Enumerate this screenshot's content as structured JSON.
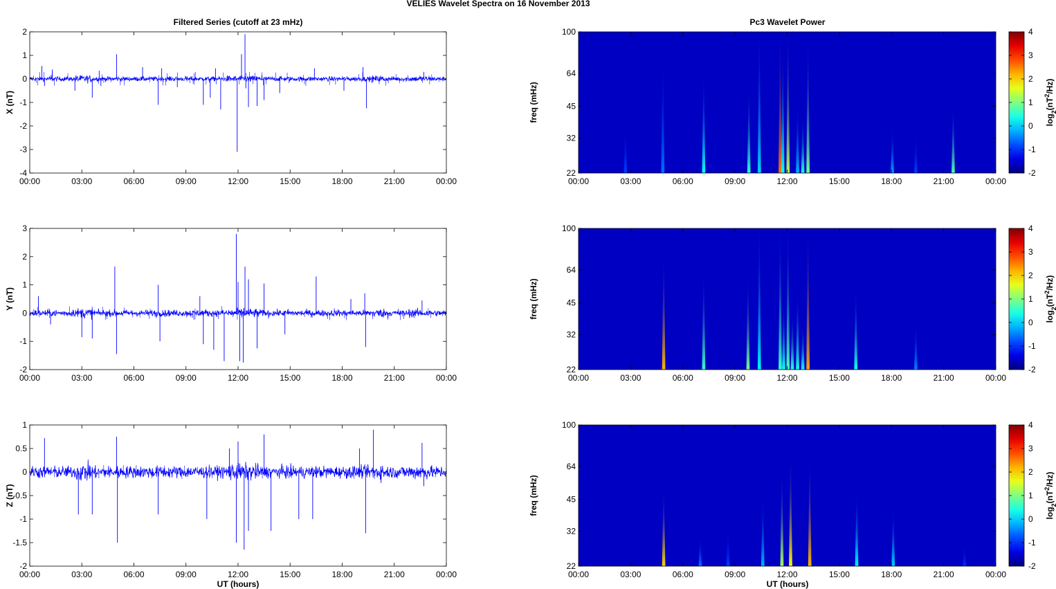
{
  "figure": {
    "suptitle": "VELIES Wavelet Spectra on 16 November  2013",
    "left_title": "Filtered Series (cutoff at 23 mHz)",
    "right_title": "Pc3 Wavelet Power",
    "xlabel": "UT (hours)"
  },
  "chart_data": [
    {
      "type": "line",
      "title": "Filtered Series (cutoff at 23 mHz)",
      "component": "X",
      "ylabel": "X (nT)",
      "xlabel": "",
      "x_ticks": [
        "00:00",
        "03:00",
        "06:00",
        "09:00",
        "12:00",
        "15:00",
        "18:00",
        "21:00",
        "00:00"
      ],
      "xlim_hours": [
        0,
        24
      ],
      "ylim": [
        -4,
        2
      ],
      "y_ticks": [
        2,
        1,
        0,
        -1,
        -2,
        -3,
        -4
      ],
      "y_tick_labels": [
        "2",
        "1",
        "0",
        "-1",
        "-2",
        "-3",
        "-4"
      ],
      "line_color": "#0000ff",
      "noise_amplitude": 0.07,
      "spikes": [
        {
          "t": 0.7,
          "v": 0.55
        },
        {
          "t": 0.85,
          "v": -0.3
        },
        {
          "t": 1.3,
          "v": 0.4
        },
        {
          "t": 2.6,
          "v": -0.5
        },
        {
          "t": 3.6,
          "v": -0.8
        },
        {
          "t": 4.0,
          "v": 0.35
        },
        {
          "t": 4.1,
          "v": -0.3
        },
        {
          "t": 5.0,
          "v": 1.05
        },
        {
          "t": 6.5,
          "v": 0.5
        },
        {
          "t": 7.4,
          "v": -1.1
        },
        {
          "t": 7.6,
          "v": 0.45
        },
        {
          "t": 8.5,
          "v": -0.35
        },
        {
          "t": 10.0,
          "v": -1.1
        },
        {
          "t": 10.4,
          "v": -0.8
        },
        {
          "t": 10.7,
          "v": 0.45
        },
        {
          "t": 11.0,
          "v": -1.3
        },
        {
          "t": 11.95,
          "v": -3.1
        },
        {
          "t": 12.2,
          "v": 1.05
        },
        {
          "t": 12.4,
          "v": 1.9
        },
        {
          "t": 12.45,
          "v": -0.4
        },
        {
          "t": 12.6,
          "v": -1.2
        },
        {
          "t": 13.1,
          "v": -1.15
        },
        {
          "t": 13.5,
          "v": -0.9
        },
        {
          "t": 14.4,
          "v": -0.6
        },
        {
          "t": 16.4,
          "v": 0.45
        },
        {
          "t": 18.1,
          "v": -0.5
        },
        {
          "t": 19.2,
          "v": 0.5
        },
        {
          "t": 19.4,
          "v": -1.25
        },
        {
          "t": 22.7,
          "v": 0.3
        }
      ]
    },
    {
      "type": "heatmap",
      "title": "Pc3 Wavelet Power",
      "component": "X",
      "ylabel": "freq (mHz)",
      "x_ticks": [
        "00:00",
        "03:00",
        "06:00",
        "09:00",
        "12:00",
        "15:00",
        "18:00",
        "21:00",
        "00:00"
      ],
      "y_ticks": [
        100,
        64,
        45,
        32,
        22
      ],
      "ylim_mHz": [
        22,
        100
      ],
      "y_scale": "log",
      "colorbar_label": "log2(nT2/Hz)",
      "colorbar_ticks": [
        4,
        3,
        2,
        1,
        0,
        -1,
        -2
      ],
      "clim": [
        -2,
        4
      ],
      "background_level": -1.6,
      "events": [
        {
          "t": 2.7,
          "f_top": 36,
          "level": -0.9
        },
        {
          "t": 4.85,
          "f_top": 75,
          "level": -0.6
        },
        {
          "t": 7.2,
          "f_top": 62,
          "level": 0.3
        },
        {
          "t": 9.8,
          "f_top": 55,
          "level": 0.5
        },
        {
          "t": 10.4,
          "f_top": 100,
          "level": 0.0
        },
        {
          "t": 11.6,
          "f_top": 100,
          "level": 2.6
        },
        {
          "t": 11.75,
          "f_top": 80,
          "level": 0.4
        },
        {
          "t": 12.05,
          "f_top": 100,
          "level": 1.3
        },
        {
          "t": 12.6,
          "f_top": 45,
          "level": -0.2
        },
        {
          "t": 12.9,
          "f_top": 40,
          "level": 0.4
        },
        {
          "t": 13.2,
          "f_top": 90,
          "level": 0.9
        },
        {
          "t": 18.05,
          "f_top": 35,
          "level": -0.3
        },
        {
          "t": 19.4,
          "f_top": 33,
          "level": -0.9
        },
        {
          "t": 21.55,
          "f_top": 45,
          "level": 0.7
        }
      ]
    },
    {
      "type": "line",
      "title": "",
      "component": "Y",
      "ylabel": "Y (nT)",
      "xlabel": "",
      "x_ticks": [
        "00:00",
        "03:00",
        "06:00",
        "09:00",
        "12:00",
        "15:00",
        "18:00",
        "21:00",
        "00:00"
      ],
      "xlim_hours": [
        0,
        24
      ],
      "ylim": [
        -2,
        3
      ],
      "y_ticks": [
        3,
        2,
        1,
        0,
        -1,
        -2
      ],
      "y_tick_labels": [
        "3",
        "2",
        "1",
        "0",
        "-1",
        "-2"
      ],
      "line_color": "#0000ff",
      "noise_amplitude": 0.08,
      "spikes": [
        {
          "t": 0.5,
          "v": 0.6
        },
        {
          "t": 1.2,
          "v": -0.4
        },
        {
          "t": 3.0,
          "v": -0.85
        },
        {
          "t": 3.6,
          "v": -0.9
        },
        {
          "t": 4.9,
          "v": 1.65
        },
        {
          "t": 5.0,
          "v": -1.45
        },
        {
          "t": 7.4,
          "v": 1.0
        },
        {
          "t": 7.5,
          "v": -1.0
        },
        {
          "t": 9.8,
          "v": 0.6
        },
        {
          "t": 10.0,
          "v": -1.1
        },
        {
          "t": 10.6,
          "v": -1.3
        },
        {
          "t": 11.2,
          "v": -1.7
        },
        {
          "t": 11.9,
          "v": 2.8
        },
        {
          "t": 12.0,
          "v": 1.1
        },
        {
          "t": 12.1,
          "v": -1.7
        },
        {
          "t": 12.3,
          "v": -1.75
        },
        {
          "t": 12.4,
          "v": 1.65
        },
        {
          "t": 12.6,
          "v": 1.2
        },
        {
          "t": 13.1,
          "v": -1.25
        },
        {
          "t": 13.5,
          "v": 1.05
        },
        {
          "t": 14.7,
          "v": -0.75
        },
        {
          "t": 16.5,
          "v": 1.3
        },
        {
          "t": 18.5,
          "v": 0.5
        },
        {
          "t": 19.3,
          "v": 0.7
        },
        {
          "t": 19.35,
          "v": -1.2
        },
        {
          "t": 22.6,
          "v": 0.45
        }
      ]
    },
    {
      "type": "heatmap",
      "title": "",
      "component": "Y",
      "ylabel": "freq (mHz)",
      "x_ticks": [
        "00:00",
        "03:00",
        "06:00",
        "09:00",
        "12:00",
        "15:00",
        "18:00",
        "21:00",
        "00:00"
      ],
      "y_ticks": [
        100,
        64,
        45,
        32,
        22
      ],
      "ylim_mHz": [
        22,
        100
      ],
      "y_scale": "log",
      "colorbar_label": "log2(nT2/Hz)",
      "colorbar_ticks": [
        4,
        3,
        2,
        1,
        0,
        -1,
        -2
      ],
      "clim": [
        -2,
        4
      ],
      "background_level": -1.6,
      "events": [
        {
          "t": 4.9,
          "f_top": 75,
          "level": 2.2
        },
        {
          "t": 7.2,
          "f_top": 62,
          "level": 0.6
        },
        {
          "t": 9.75,
          "f_top": 58,
          "level": 0.9
        },
        {
          "t": 10.4,
          "f_top": 100,
          "level": 0.2
        },
        {
          "t": 11.6,
          "f_top": 100,
          "level": 0.6
        },
        {
          "t": 11.8,
          "f_top": 45,
          "level": 0.3
        },
        {
          "t": 12.05,
          "f_top": 100,
          "level": 0.7
        },
        {
          "t": 12.3,
          "f_top": 40,
          "level": 0.5
        },
        {
          "t": 12.6,
          "f_top": 50,
          "level": 0.4
        },
        {
          "t": 12.9,
          "f_top": 36,
          "level": 0.3
        },
        {
          "t": 13.2,
          "f_top": 100,
          "level": 2.3
        },
        {
          "t": 15.95,
          "f_top": 52,
          "level": 0.4
        },
        {
          "t": 19.4,
          "f_top": 36,
          "level": -0.5
        }
      ]
    },
    {
      "type": "line",
      "title": "",
      "component": "Z",
      "ylabel": "Z (nT)",
      "xlabel": "UT (hours)",
      "x_ticks": [
        "00:00",
        "03:00",
        "06:00",
        "09:00",
        "12:00",
        "15:00",
        "18:00",
        "21:00",
        "00:00"
      ],
      "xlim_hours": [
        0,
        24
      ],
      "ylim": [
        -2,
        1
      ],
      "y_ticks": [
        1,
        0.5,
        0,
        -0.5,
        -1,
        -1.5,
        -2
      ],
      "y_tick_labels": [
        "1",
        "0.5",
        "0",
        "-0.5",
        "-1",
        "-1.5",
        "-2"
      ],
      "line_color": "#0000ff",
      "noise_amplitude": 0.09,
      "spikes": [
        {
          "t": 0.85,
          "v": 0.72
        },
        {
          "t": 2.8,
          "v": -0.9
        },
        {
          "t": 3.6,
          "v": -0.9
        },
        {
          "t": 5.0,
          "v": 0.75
        },
        {
          "t": 5.05,
          "v": -1.5
        },
        {
          "t": 7.4,
          "v": -0.9
        },
        {
          "t": 10.2,
          "v": -1.0
        },
        {
          "t": 11.5,
          "v": 0.5
        },
        {
          "t": 11.9,
          "v": -1.5
        },
        {
          "t": 12.0,
          "v": 0.65
        },
        {
          "t": 12.35,
          "v": -1.65
        },
        {
          "t": 12.6,
          "v": -1.25
        },
        {
          "t": 13.5,
          "v": 0.8
        },
        {
          "t": 13.9,
          "v": -1.25
        },
        {
          "t": 15.5,
          "v": -1.0
        },
        {
          "t": 16.3,
          "v": -1.0
        },
        {
          "t": 19.0,
          "v": 0.5
        },
        {
          "t": 19.35,
          "v": -1.3
        },
        {
          "t": 19.8,
          "v": 0.9
        },
        {
          "t": 22.6,
          "v": 0.62
        },
        {
          "t": 22.7,
          "v": -0.3
        }
      ]
    },
    {
      "type": "heatmap",
      "title": "",
      "component": "Z",
      "ylabel": "freq (mHz)",
      "xlabel": "UT (hours)",
      "x_ticks": [
        "00:00",
        "03:00",
        "06:00",
        "09:00",
        "12:00",
        "15:00",
        "18:00",
        "21:00",
        "00:00"
      ],
      "y_ticks": [
        100,
        64,
        45,
        32,
        22
      ],
      "ylim_mHz": [
        22,
        100
      ],
      "y_scale": "log",
      "colorbar_label": "log2(nT2/Hz)",
      "colorbar_ticks": [
        4,
        3,
        2,
        1,
        0,
        -1,
        -2
      ],
      "clim": [
        -2,
        4
      ],
      "background_level": -1.6,
      "events": [
        {
          "t": 4.9,
          "f_top": 50,
          "level": 2.0
        },
        {
          "t": 7.0,
          "f_top": 30,
          "level": -0.6
        },
        {
          "t": 8.6,
          "f_top": 32,
          "level": -0.9
        },
        {
          "t": 10.6,
          "f_top": 45,
          "level": -0.2
        },
        {
          "t": 11.7,
          "f_top": 60,
          "level": 1.2
        },
        {
          "t": 12.2,
          "f_top": 72,
          "level": 1.8
        },
        {
          "t": 13.3,
          "f_top": 70,
          "level": 2.2
        },
        {
          "t": 16.0,
          "f_top": 48,
          "level": 0.2
        },
        {
          "t": 18.1,
          "f_top": 40,
          "level": 0.0
        },
        {
          "t": 22.2,
          "f_top": 28,
          "level": -1.0
        }
      ]
    }
  ]
}
